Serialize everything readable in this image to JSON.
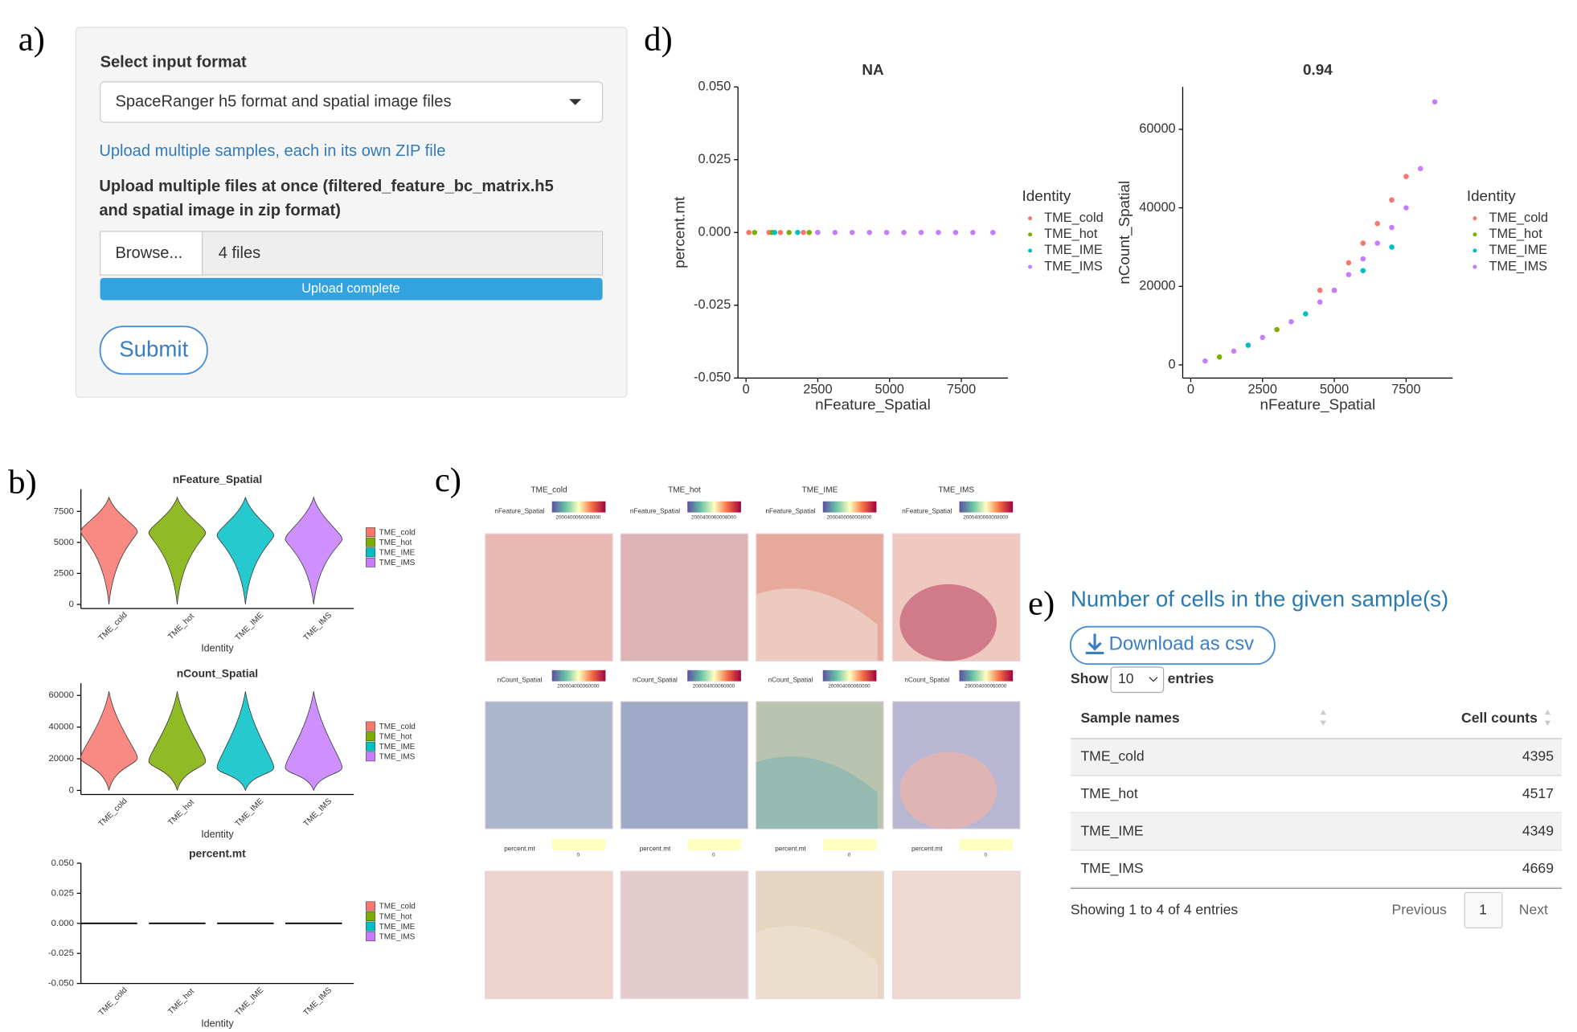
{
  "panel_labels": [
    "a)",
    "b)",
    "c)",
    "d)",
    "e)"
  ],
  "input_form": {
    "select_label": "Select input format",
    "select_value": "SpaceRanger h5 format and spatial image files",
    "help_link": "Upload multiple samples, each in its own ZIP file",
    "upload_label": [
      "Upload multiple files at once (filtered_feature_bc_matrix.h5",
      "and spatial image in zip format)"
    ],
    "browse": "Browse...",
    "file_count": "4 files",
    "progress": "Upload complete",
    "submit": "Submit"
  },
  "chart_data": [
    {
      "type": "scatter",
      "title": "NA",
      "xlabel": "nFeature_Spatial",
      "ylabel": "percent.mt",
      "legend_title": "Identity",
      "xlim": [
        -280,
        9120
      ],
      "xticks": [
        0,
        2500,
        5000,
        7500
      ],
      "ylim": [
        -0.05,
        0.05
      ],
      "yticks": [
        {
          "value": -0.05,
          "label": "-0.050"
        },
        {
          "value": -0.025,
          "label": "-0.025"
        },
        {
          "value": 0,
          "label": "0.000"
        },
        {
          "value": 0.025,
          "label": "0.025"
        },
        {
          "value": 0.05,
          "label": "0.050"
        }
      ],
      "series": [
        {
          "name": "TME_cold",
          "color": "#F8766D",
          "x": [
            100,
            800,
            1200,
            2000
          ],
          "values": [
            0,
            0,
            0,
            0
          ]
        },
        {
          "name": "TME_hot",
          "color": "#7CAE00",
          "x": [
            300,
            900,
            1500,
            2200
          ],
          "values": [
            0,
            0,
            0,
            0
          ]
        },
        {
          "name": "TME_IME",
          "color": "#00BFC4",
          "x": [
            1000,
            1800,
            2500
          ],
          "values": [
            0,
            0,
            0
          ]
        },
        {
          "name": "TME_IMS",
          "color": "#C77CFF",
          "x": [
            2500,
            3100,
            3700,
            4300,
            4900,
            5500,
            6100,
            6700,
            7300,
            7900,
            8600
          ],
          "values": [
            0,
            0,
            0,
            0,
            0,
            0,
            0,
            0,
            0,
            0,
            0
          ]
        }
      ]
    },
    {
      "type": "scatter",
      "title": "0.94",
      "xlabel": "nFeature_Spatial",
      "ylabel": "nCount_Spatial",
      "legend_title": "Identity",
      "xlim": [
        -280,
        9120
      ],
      "xticks": [
        0,
        2500,
        5000,
        7500
      ],
      "ylim": [
        -3350,
        70800
      ],
      "yticks": [
        0,
        20000,
        40000,
        60000
      ],
      "series": [
        {
          "name": "TME_cold",
          "color": "#F8766D",
          "x": [
            4500,
            5500,
            6000,
            6500,
            7000,
            7500
          ],
          "values": [
            19000,
            26000,
            31000,
            36000,
            42000,
            48000
          ]
        },
        {
          "name": "TME_hot",
          "color": "#7CAE00",
          "x": [
            1000,
            3000,
            5000
          ],
          "values": [
            2000,
            9000,
            19000
          ]
        },
        {
          "name": "TME_IME",
          "color": "#00BFC4",
          "x": [
            2000,
            4000,
            6000,
            7000
          ],
          "values": [
            5000,
            13000,
            24000,
            30000
          ]
        },
        {
          "name": "TME_IMS",
          "color": "#C77CFF",
          "x": [
            500,
            1500,
            2500,
            3500,
            4500,
            5000,
            5500,
            6000,
            6500,
            7000,
            7500,
            8000,
            8500
          ],
          "values": [
            1000,
            3500,
            7000,
            11000,
            16000,
            19000,
            23000,
            27000,
            31000,
            35000,
            40000,
            50000,
            67000
          ]
        }
      ]
    },
    {
      "type": "violin",
      "title": "nFeature_Spatial",
      "xlabel": "Identity",
      "categories": [
        "TME_cold",
        "TME_hot",
        "TME_IME",
        "TME_IMS"
      ],
      "colors": [
        "#F8766D",
        "#7CAE00",
        "#00BFC4",
        "#C77CFF"
      ],
      "values": [
        5800,
        5700,
        5500,
        5200
      ],
      "ylim": [
        -330,
        9290
      ],
      "yticks": [
        0,
        2500,
        5000,
        7500
      ]
    },
    {
      "type": "violin",
      "title": "nCount_Spatial",
      "xlabel": "Identity",
      "categories": [
        "TME_cold",
        "TME_hot",
        "TME_IME",
        "TME_IMS"
      ],
      "colors": [
        "#F8766D",
        "#7CAE00",
        "#00BFC4",
        "#C77CFF"
      ],
      "values": [
        20000,
        18000,
        14000,
        14000
      ],
      "ylim": [
        -2550,
        67650
      ],
      "yticks": [
        0,
        20000,
        40000,
        60000
      ]
    },
    {
      "type": "violin",
      "title": "percent.mt",
      "xlabel": "Identity",
      "categories": [
        "TME_cold",
        "TME_hot",
        "TME_IME",
        "TME_IMS"
      ],
      "colors": [
        "#F8766D",
        "#7CAE00",
        "#00BFC4",
        "#C77CFF"
      ],
      "values": [
        0,
        0,
        0,
        0
      ],
      "ylim": [
        -0.05,
        0.05
      ],
      "yticks": [
        {
          "value": -0.05,
          "label": "-0.050"
        },
        {
          "value": -0.025,
          "label": "-0.025"
        },
        {
          "value": 0,
          "label": "0.000"
        },
        {
          "value": 0.025,
          "label": "0.025"
        },
        {
          "value": 0.05,
          "label": "0.050"
        }
      ]
    }
  ],
  "spatial": {
    "samples": [
      "TME_cold",
      "TME_hot",
      "TME_IME",
      "TME_IMS"
    ],
    "rows": [
      {
        "feature": "nFeature_Spatial",
        "scale": "2000400060008000"
      },
      {
        "feature": "nCount_Spatial",
        "scale": "200004000060000"
      },
      {
        "feature": "percent.mt",
        "scale": "0"
      }
    ]
  },
  "cell_table": {
    "title": "Number of cells in the given sample(s)",
    "download": "Download as csv",
    "show": "Show",
    "page_size": "10",
    "entries": "entries",
    "headers": [
      "Sample names",
      "Cell counts"
    ],
    "rows": [
      [
        "TME_cold",
        4395
      ],
      [
        "TME_hot",
        4517
      ],
      [
        "TME_IME",
        4349
      ],
      [
        "TME_IMS",
        4669
      ]
    ],
    "info": "Showing 1 to 4 of 4 entries",
    "previous": "Previous",
    "page": "1",
    "next": "Next"
  }
}
